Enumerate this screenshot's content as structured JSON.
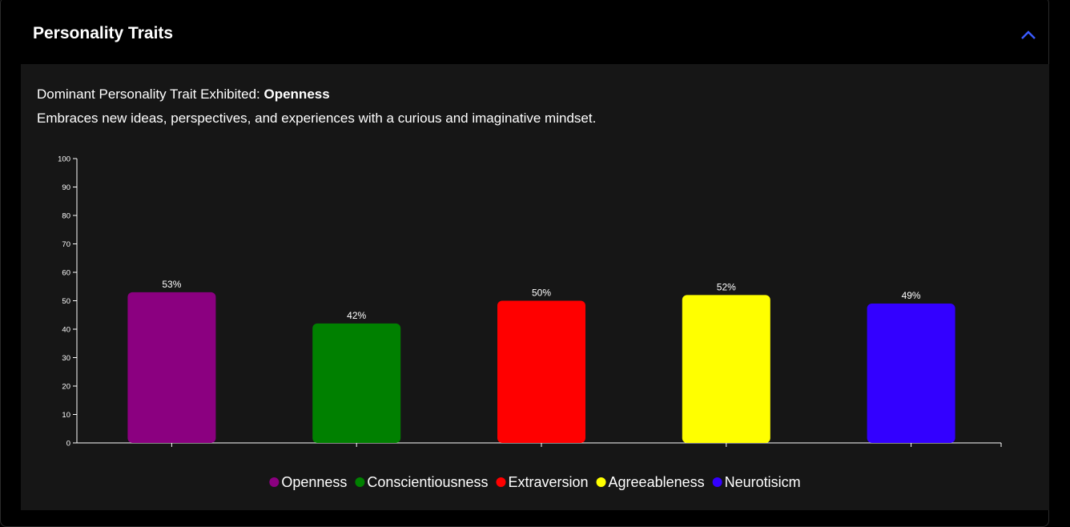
{
  "header": {
    "title": "Personality Traits"
  },
  "summary": {
    "dominant_label": "Dominant Personality Trait Exhibited:",
    "dominant_trait": "Openness",
    "description": "Embraces new ideas, perspectives, and experiences with a curious and imaginative mindset."
  },
  "chart_data": {
    "type": "bar",
    "categories": [
      null,
      null,
      null,
      null,
      null
    ],
    "values": [
      53,
      42,
      50,
      52,
      49
    ],
    "value_labels": [
      "53%",
      "42%",
      "50%",
      "52%",
      "49%"
    ],
    "colors": [
      "#8b0080",
      "#008000",
      "#ff0000",
      "#ffff00",
      "#3300ff"
    ],
    "legend": [
      "Openness",
      "Conscientiousness",
      "Extraversion",
      "Agreeableness",
      "Neurotisicm"
    ],
    "ylim": [
      0,
      100
    ],
    "yticks": [
      0,
      10,
      20,
      30,
      40,
      50,
      60,
      70,
      80,
      90,
      100
    ],
    "grid": false
  }
}
